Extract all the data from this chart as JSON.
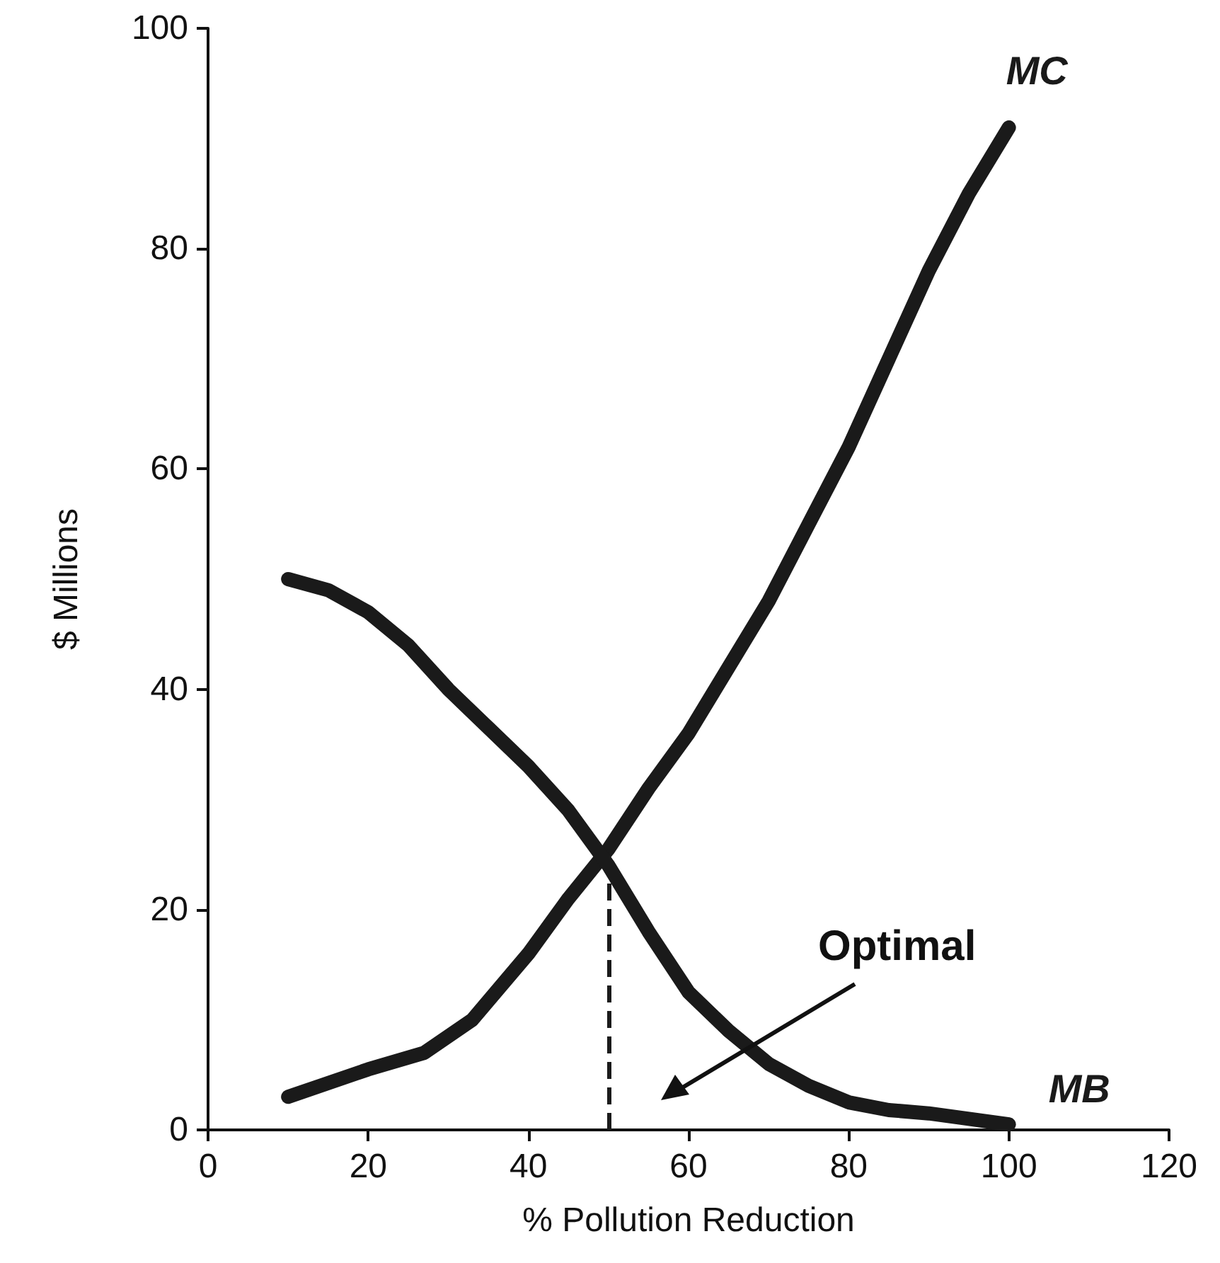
{
  "chart_data": {
    "type": "line",
    "xlabel": "% Pollution Reduction",
    "ylabel": "$ Millions",
    "xlim": [
      0,
      120
    ],
    "xticks": [
      0,
      20,
      40,
      60,
      80,
      100,
      120
    ],
    "ylim": [
      0,
      100
    ],
    "yticks": [
      0,
      20,
      40,
      60,
      80,
      100
    ],
    "grid": false,
    "legend": false,
    "line_style": "solid",
    "series": [
      {
        "name": "MC",
        "color": "#1a1a1a",
        "x": [
          10,
          20,
          27,
          33,
          40,
          45,
          50,
          55,
          60,
          65,
          70,
          75,
          80,
          85,
          90,
          95,
          100
        ],
        "values": [
          3,
          5.5,
          7,
          10,
          16,
          21,
          25.5,
          31,
          36,
          42,
          48,
          55,
          62,
          70,
          78,
          85,
          91
        ]
      },
      {
        "name": "MB",
        "color": "#1a1a1a",
        "x": [
          10,
          15,
          20,
          25,
          30,
          35,
          40,
          45,
          50,
          55,
          60,
          65,
          70,
          75,
          80,
          85,
          90,
          95,
          100
        ],
        "values": [
          50,
          49,
          47,
          44,
          40,
          36.5,
          33,
          29,
          24,
          18,
          12.5,
          9,
          6,
          4,
          2.5,
          1.8,
          1.5,
          1,
          0.5
        ]
      }
    ],
    "ref_lines": [
      {
        "axis": "x",
        "value": 50,
        "line_style": "dashed",
        "color": "#1a1a1a"
      }
    ],
    "annotations": [
      "Optimal"
    ]
  }
}
